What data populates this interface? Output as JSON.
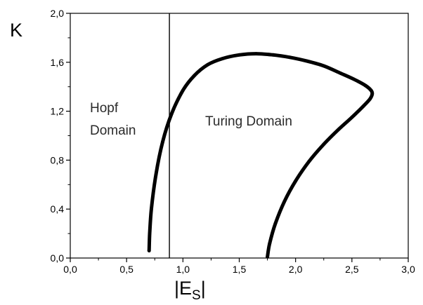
{
  "chart_data": {
    "type": "line",
    "title": "",
    "xlabel": "|E",
    "xlabel_sub": "S",
    "xlabel_suffix": "|",
    "ylabel": "K",
    "xlim": [
      0.0,
      3.0
    ],
    "ylim": [
      0.0,
      2.0
    ],
    "xticks": [
      "0,0",
      "0,5",
      "1,0",
      "1,5",
      "2,0",
      "2,5",
      "3,0"
    ],
    "yticks": [
      "0,0",
      "0,4",
      "0,8",
      "1,2",
      "1,6",
      "2,0"
    ],
    "grid": false,
    "legend": "none",
    "vertical_line_x": 0.88,
    "series": [
      {
        "color": "#000000",
        "x": [
          0.7,
          0.705,
          0.72,
          0.76,
          0.82,
          0.9,
          1.0,
          1.1,
          1.22,
          1.35,
          1.5,
          1.65,
          1.8,
          1.95,
          2.1,
          2.25,
          2.4,
          2.52,
          2.62,
          2.67,
          2.68,
          2.66,
          2.6,
          2.5,
          2.38,
          2.25,
          2.12,
          2.0,
          1.9,
          1.82,
          1.77,
          1.75
        ],
        "y": [
          0.06,
          0.2,
          0.4,
          0.68,
          0.95,
          1.18,
          1.37,
          1.49,
          1.58,
          1.63,
          1.66,
          1.67,
          1.66,
          1.64,
          1.61,
          1.57,
          1.51,
          1.46,
          1.41,
          1.37,
          1.34,
          1.3,
          1.24,
          1.15,
          1.05,
          0.93,
          0.79,
          0.63,
          0.46,
          0.28,
          0.12,
          0.01
        ]
      }
    ],
    "annotations": [
      {
        "lines": [
          "Hopf",
          "Domain"
        ]
      },
      {
        "lines": [
          "Turing Domain"
        ]
      }
    ]
  }
}
